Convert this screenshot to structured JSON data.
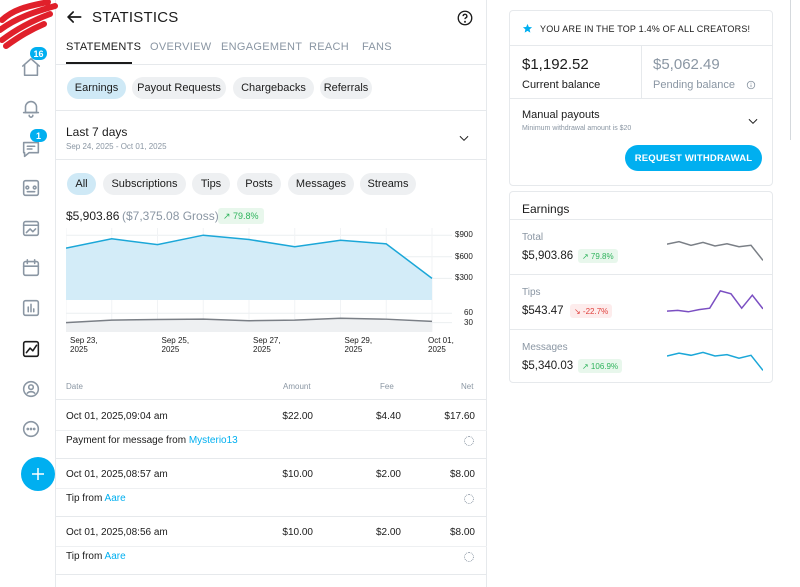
{
  "header": {
    "title": "STATISTICS"
  },
  "sidebar": {
    "items": [
      {
        "icon": "home-icon",
        "badge": "16"
      },
      {
        "icon": "bell-icon",
        "badge": ""
      },
      {
        "icon": "messages-icon",
        "badge": "1"
      },
      {
        "icon": "collections-icon",
        "badge": ""
      },
      {
        "icon": "vault-icon",
        "badge": ""
      },
      {
        "icon": "queue-icon",
        "badge": ""
      },
      {
        "icon": "statements-icon",
        "badge": ""
      },
      {
        "icon": "statistics-icon",
        "badge": ""
      },
      {
        "icon": "profile-icon",
        "badge": ""
      },
      {
        "icon": "more-icon",
        "badge": ""
      }
    ]
  },
  "tabs": [
    "STATEMENTS",
    "OVERVIEW",
    "ENGAGEMENT",
    "REACH",
    "FANS"
  ],
  "statement_pills": [
    "Earnings",
    "Payout Requests",
    "Chargebacks",
    "Referrals"
  ],
  "range": {
    "title": "Last 7 days",
    "subtitle": "Sep 24, 2025 - Oct 01, 2025"
  },
  "filters": [
    "All",
    "Subscriptions",
    "Tips",
    "Posts",
    "Messages",
    "Streams"
  ],
  "summary": {
    "net": "$5,903.86",
    "gross": "($7,375.08 Gross)",
    "growth": "↗ 79.8%"
  },
  "chart_data": {
    "type": "area",
    "x": [
      "Sep 23, 2025",
      "Sep 24, 2025",
      "Sep 25, 2025",
      "Sep 26, 2025",
      "Sep 27, 2025",
      "Sep 28, 2025",
      "Sep 29, 2025",
      "Sep 30, 2025",
      "Oct 01, 2025"
    ],
    "x_tick_labels": [
      "Sep 23,\n2025",
      "Sep 25,\n2025",
      "Sep 27,\n2025",
      "Sep 29,\n2025",
      "Oct 01,\n2025"
    ],
    "series": [
      {
        "values": [
          720,
          850,
          770,
          900,
          840,
          740,
          830,
          780,
          300
        ]
      }
    ],
    "y_ticks": [
      "$900",
      "$600",
      "$300"
    ],
    "ylim": [
      0,
      1000
    ],
    "count_series": {
      "values": [
        30,
        38,
        40,
        41,
        36,
        38,
        44,
        41,
        34
      ]
    },
    "count_ticks": [
      "60",
      "30"
    ],
    "count_ylim": [
      0,
      80
    ],
    "colors": {
      "line": "#1ba7d8",
      "fill": "#d3ecf8",
      "count_line": "#7a7f86"
    }
  },
  "transactions": {
    "headers": {
      "date": "Date",
      "amount": "Amount",
      "fee": "Fee",
      "net": "Net"
    },
    "rows": [
      {
        "date": "Oct 01, 2025,09:04 am",
        "amount": "$22.00",
        "fee": "$4.40",
        "net": "$17.60",
        "desc": "Payment for message from ",
        "user": "Mysterio13"
      },
      {
        "date": "Oct 01, 2025,08:57 am",
        "amount": "$10.00",
        "fee": "$2.00",
        "net": "$8.00",
        "desc": "Tip from ",
        "user": "Aare"
      },
      {
        "date": "Oct 01, 2025,08:56 am",
        "amount": "$10.00",
        "fee": "$2.00",
        "net": "$8.00",
        "desc": "Tip from ",
        "user": "Aare"
      }
    ]
  },
  "balance": {
    "banner": "YOU ARE IN THE TOP 1.4% OF ALL CREATORS!",
    "current_amount": "$1,192.52",
    "current_label": "Current balance",
    "pending_amount": "$5,062.49",
    "pending_label": "Pending balance",
    "payout_title": "Manual payouts",
    "payout_sub": "Minimum withdrawal amount is $20",
    "withdraw_label": "REQUEST WITHDRAWAL"
  },
  "earnings_card": {
    "title": "Earnings",
    "rows": [
      {
        "name": "Total",
        "amount": "$5,903.86",
        "growth": "↗ 79.8%",
        "direction": "up",
        "spark": [
          0.55,
          0.62,
          0.52,
          0.6,
          0.5,
          0.56,
          0.48,
          0.52,
          0.1
        ],
        "spark_color": "#7a7f86"
      },
      {
        "name": "Tips",
        "amount": "$543.47",
        "growth": "↘ -22.7%",
        "direction": "down",
        "spark": [
          0.22,
          0.24,
          0.2,
          0.26,
          0.3,
          0.78,
          0.7,
          0.3,
          0.66,
          0.28
        ],
        "spark_color": "#7b4fc2"
      },
      {
        "name": "Messages",
        "amount": "$5,340.03",
        "growth": "↗ 106.9%",
        "direction": "up",
        "spark": [
          0.5,
          0.58,
          0.52,
          0.6,
          0.5,
          0.54,
          0.44,
          0.52,
          0.1
        ],
        "spark_color": "#1ba7d8"
      }
    ]
  }
}
